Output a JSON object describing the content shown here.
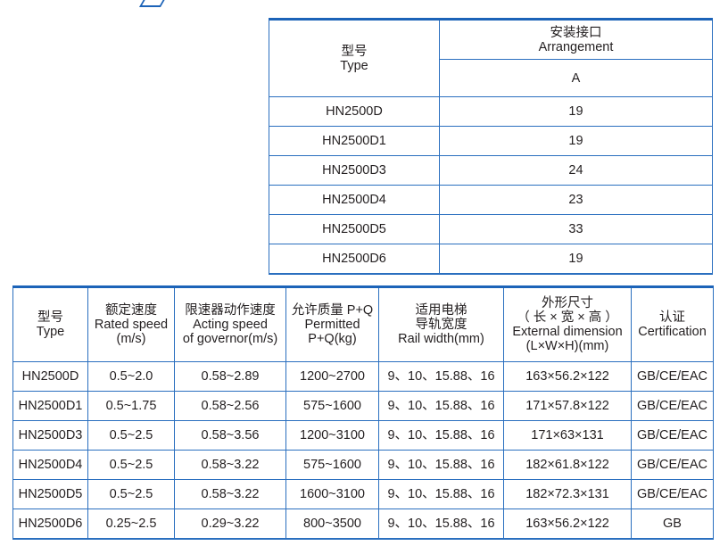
{
  "colors": {
    "border": "#2a6fbf",
    "text": "#231f20"
  },
  "table1": {
    "type_cn": "型号",
    "type_en": "Type",
    "arr_cn": "安装接口",
    "arr_en": "Arrangement",
    "sub": "A",
    "rows": [
      [
        "HN2500D",
        "19"
      ],
      [
        "HN2500D1",
        "19"
      ],
      [
        "HN2500D3",
        "24"
      ],
      [
        "HN2500D4",
        "23"
      ],
      [
        "HN2500D5",
        "33"
      ],
      [
        "HN2500D6",
        "19"
      ]
    ]
  },
  "table2": {
    "headers": [
      [
        "型号",
        "Type"
      ],
      [
        "额定速度",
        "Rated speed",
        "(m/s)"
      ],
      [
        "限速器动作速度",
        "Acting speed",
        "of governor(m/s)"
      ],
      [
        "允许质量 P+Q",
        "Permitted",
        "P+Q(kg)"
      ],
      [
        "适用电梯",
        "导轨宽度",
        "Rail width(mm)"
      ],
      [
        "外形尺寸",
        "（ 长 × 宽 × 高 ）",
        "External dimension",
        "(L×W×H)(mm)"
      ],
      [
        "认证",
        "Certification"
      ]
    ],
    "rows": [
      [
        "HN2500D",
        "0.5~2.0",
        "0.58~2.89",
        "1200~2700",
        "9、10、15.88、16",
        "163×56.2×122",
        "GB/CE/EAC"
      ],
      [
        "HN2500D1",
        "0.5~1.75",
        "0.58~2.56",
        "575~1600",
        "9、10、15.88、16",
        "171×57.8×122",
        "GB/CE/EAC"
      ],
      [
        "HN2500D3",
        "0.5~2.5",
        "0.58~3.56",
        "1200~3100",
        "9、10、15.88、16",
        "171×63×131",
        "GB/CE/EAC"
      ],
      [
        "HN2500D4",
        "0.5~2.5",
        "0.58~3.22",
        "575~1600",
        "9、10、15.88、16",
        "182×61.8×122",
        "GB/CE/EAC"
      ],
      [
        "HN2500D5",
        "0.5~2.5",
        "0.58~3.22",
        "1600~3100",
        "9、10、15.88、16",
        "182×72.3×131",
        "GB/CE/EAC"
      ],
      [
        "HN2500D6",
        "0.25~2.5",
        "0.29~3.22",
        "800~3500",
        "9、10、15.88、16",
        "163×56.2×122",
        "GB"
      ]
    ]
  }
}
